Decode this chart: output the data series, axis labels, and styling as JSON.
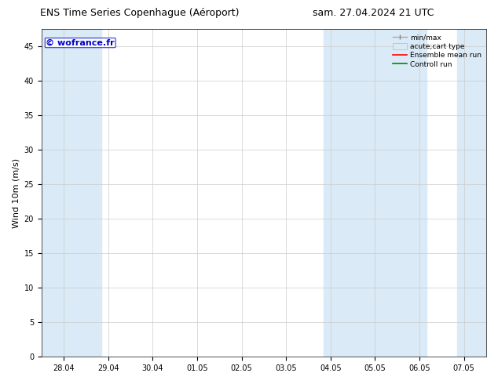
{
  "title_left": "ENS Time Series Copenhague (Aéroport)",
  "title_right": "sam. 27.04.2024 21 UTC",
  "ylabel": "Wind 10m (m/s)",
  "xtick_labels": [
    "28.04",
    "29.04",
    "30.04",
    "01.05",
    "02.05",
    "03.05",
    "04.05",
    "05.05",
    "06.05",
    "07.05"
  ],
  "yticks": [
    0,
    5,
    10,
    15,
    20,
    25,
    30,
    35,
    40,
    45
  ],
  "ylim": [
    0,
    47.5
  ],
  "xlim": [
    -0.5,
    9.5
  ],
  "background_color": "#ffffff",
  "plot_bg_color": "#ffffff",
  "grid_color": "#cccccc",
  "shade_color": "#daeaf6",
  "watermark_text": "© wofrance.fr",
  "watermark_color": "#0000cc",
  "title_fontsize": 9,
  "tick_fontsize": 7,
  "ylabel_fontsize": 8,
  "watermark_fontsize": 8,
  "legend_fontsize": 6.5,
  "fig_width": 6.34,
  "fig_height": 4.9,
  "shade_bands": [
    {
      "xmin": -0.5,
      "xmax": 0.85
    },
    {
      "xmin": 5.85,
      "xmax": 8.15
    },
    {
      "xmin": 8.85,
      "xmax": 9.5
    }
  ]
}
